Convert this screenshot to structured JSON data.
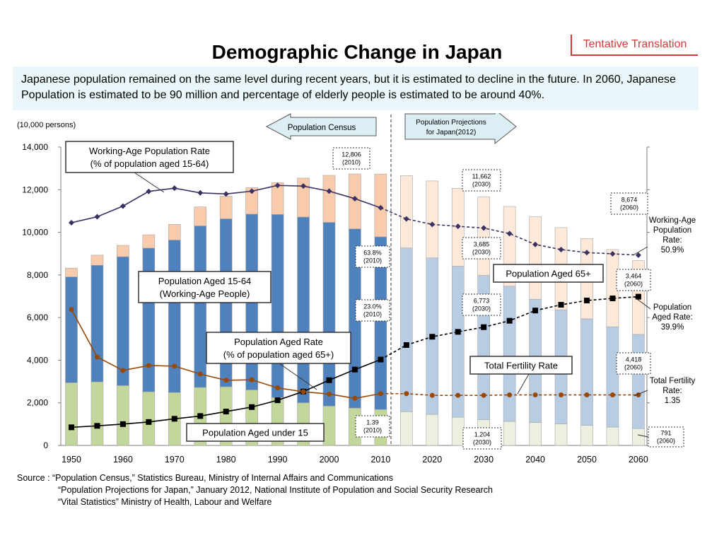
{
  "header": {
    "title": "Demographic Change in Japan",
    "tag": "Tentative Translation",
    "intro": "Japanese population remained on the same level during recent years, but it is estimated to decline in the future.  In 2060, Japanese Population is estimated to be 90 million and percentage of elderly people is estimated to be around 40%."
  },
  "source": {
    "line1": "Source : “Population Census,” Statistics Bureau, Ministry of Internal Affairs and Communications",
    "line2": "“Population Projections for Japan,” January 2012, National Institute of Population and Social Security Research",
    "line3": "“Vital Statistics” Ministry of Health, Labour and Welfare"
  },
  "colors": {
    "under15": "#c3d69b",
    "age15_64": "#4f81bd",
    "age65": "#f8cbad",
    "under15_proj": "#ebf1de",
    "age15_64_proj": "#b8cce4",
    "age65_proj": "#fde9d9",
    "working_rate": "#3b3163",
    "aged_rate": "#000000",
    "fertility": "#984807",
    "arrow_fill": "#dbeef4"
  },
  "chart_data": {
    "type": "bar",
    "unit_label": "(10,000 persons)",
    "ylim": [
      0,
      14000
    ],
    "y_ticks": [
      "0",
      "2,000",
      "4,000",
      "6,000",
      "8,000",
      "10,000",
      "12,000",
      "14,000"
    ],
    "x_tick_labels": [
      "1950",
      "1960",
      "1970",
      "1980",
      "1990",
      "2000",
      "2010",
      "2020",
      "2030",
      "2040",
      "2050",
      "2060"
    ],
    "years": [
      1950,
      1955,
      1960,
      1965,
      1970,
      1975,
      1980,
      1985,
      1990,
      1995,
      2000,
      2005,
      2010,
      2015,
      2020,
      2025,
      2030,
      2035,
      2040,
      2045,
      2050,
      2055,
      2060
    ],
    "projection_start": 2015,
    "section_labels": {
      "census": "Population Census",
      "projection": "Population Projections for Japan(2012)"
    },
    "series": [
      {
        "name": "Population Aged under 15",
        "values": [
          2943,
          2980,
          2807,
          2517,
          2482,
          2722,
          2751,
          2603,
          2249,
          2001,
          1847,
          1752,
          1684,
          1583,
          1457,
          1324,
          1204,
          1129,
          1073,
          1012,
          939,
          861,
          791
        ]
      },
      {
        "name": "Population Aged 15-64 (Working-Age People)",
        "values": [
          4966,
          5473,
          6047,
          6744,
          7157,
          7581,
          7883,
          8251,
          8590,
          8716,
          8622,
          8409,
          8103,
          7682,
          7341,
          7085,
          6773,
          6343,
          5787,
          5353,
          5001,
          4706,
          4418
        ]
      },
      {
        "name": "Population Aged 65+",
        "values": [
          411,
          475,
          535,
          624,
          733,
          887,
          1065,
          1247,
          1489,
          1826,
          2204,
          2576,
          2948,
          3395,
          3612,
          3657,
          3685,
          3741,
          3868,
          3856,
          3768,
          3626,
          3464
        ]
      }
    ],
    "lines": [
      {
        "name": "Working-Age Population Rate (% of population aged 15-64)",
        "values": [
          10450,
          10730,
          11230,
          11920,
          12070,
          11850,
          11800,
          11930,
          12200,
          12170,
          11930,
          11580,
          11150,
          10630,
          10370,
          10280,
          10200,
          9940,
          9430,
          9190,
          9050,
          8990,
          8930
        ]
      },
      {
        "name": "Population Aged Rate (% of population aged 65+)",
        "values": [
          850,
          920,
          1000,
          1100,
          1250,
          1380,
          1590,
          1800,
          2120,
          2530,
          3060,
          3560,
          4030,
          4710,
          5100,
          5330,
          5550,
          5850,
          6330,
          6600,
          6800,
          6900,
          6980
        ]
      },
      {
        "name": "Total Fertility Rate",
        "values": [
          6380,
          4150,
          3520,
          3750,
          3720,
          3350,
          3060,
          3080,
          2700,
          2520,
          2410,
          2210,
          2430,
          2430,
          2350,
          2350,
          2350,
          2370,
          2370,
          2370,
          2370,
          2370,
          2370
        ]
      }
    ],
    "annotations": {
      "total_2010": [
        "12,806",
        "(2010)"
      ],
      "total_2030": [
        "11,662",
        "(2030)"
      ],
      "total_2060": [
        "8,674",
        "(2060)"
      ],
      "a65_2030": [
        "3,685",
        "(2030)"
      ],
      "a65_2060": [
        "3,464",
        "(2060)"
      ],
      "w_2030": [
        "6,773",
        "(2030)"
      ],
      "w_2060": [
        "4,418",
        "(2060)"
      ],
      "u15_2030": [
        "1,204",
        "(2030)"
      ],
      "u15_2060": [
        "791",
        "(2060)"
      ],
      "wr_2010": [
        "63.8%",
        "(2010)"
      ],
      "ar_2010": [
        "23.0%",
        "(2010)"
      ],
      "tfr_2010": [
        "1.39",
        "(2010)"
      ]
    },
    "callouts": {
      "working_rate": [
        "Working-Age Population Rate",
        "(% of population aged 15-64)"
      ],
      "working_people": [
        "Population Aged 15-64",
        "(Working-Age People)"
      ],
      "aged_rate": [
        "Population Aged Rate",
        "(% of population aged 65+)"
      ],
      "under15": "Population Aged under 15",
      "aged65": "Population Aged 65+",
      "fertility": "Total Fertility Rate"
    },
    "right_labels": {
      "working": [
        "Working-Age",
        "Population",
        "Rate:",
        "50.9%"
      ],
      "aged": [
        "Population",
        "Aged Rate:",
        "39.9%"
      ],
      "fertility": [
        "Total Fertility",
        "Rate:",
        "1.35"
      ]
    }
  }
}
